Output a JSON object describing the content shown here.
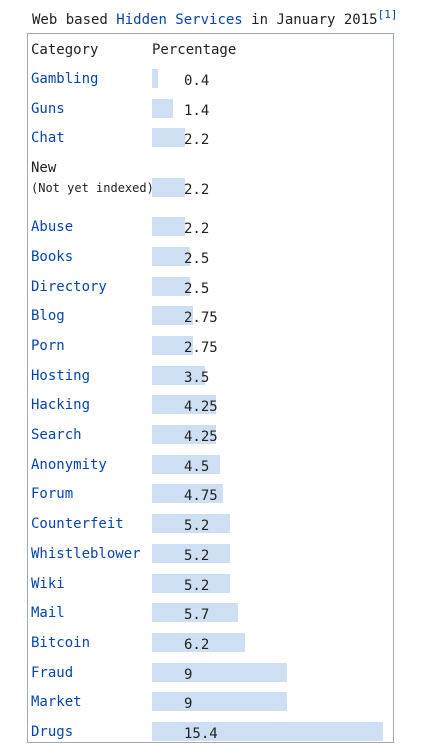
{
  "chart_data": {
    "type": "table",
    "caption": {
      "prefix": "Web based ",
      "link": "Hidden Services",
      "suffix": " in January 2015",
      "ref": "[1]"
    },
    "columns": [
      "Category",
      "Percentage"
    ],
    "rows": [
      {
        "category": "Gambling",
        "value": 0.4,
        "label": "0.4",
        "link": true
      },
      {
        "category": "Guns",
        "value": 1.4,
        "label": "1.4",
        "link": true
      },
      {
        "category": "Chat",
        "value": 2.2,
        "label": "2.2",
        "link": true
      },
      {
        "category": "New",
        "sub": "(Not yet indexed)",
        "value": 2.2,
        "label": "2.2",
        "link": false
      },
      {
        "category": "Abuse",
        "value": 2.2,
        "label": "2.2",
        "link": true
      },
      {
        "category": "Books",
        "value": 2.5,
        "label": "2.5",
        "link": true
      },
      {
        "category": "Directory",
        "value": 2.5,
        "label": "2.5",
        "link": true
      },
      {
        "category": "Blog",
        "value": 2.75,
        "label": "2.75",
        "link": true
      },
      {
        "category": "Porn",
        "value": 2.75,
        "label": "2.75",
        "link": true
      },
      {
        "category": "Hosting",
        "value": 3.5,
        "label": "3.5",
        "link": true
      },
      {
        "category": "Hacking",
        "value": 4.25,
        "label": "4.25",
        "link": true
      },
      {
        "category": "Search",
        "value": 4.25,
        "label": "4.25",
        "link": true
      },
      {
        "category": "Anonymity",
        "value": 4.5,
        "label": "4.5",
        "link": true
      },
      {
        "category": "Forum",
        "value": 4.75,
        "label": "4.75",
        "link": true
      },
      {
        "category": "Counterfeit",
        "value": 5.2,
        "label": "5.2",
        "link": true
      },
      {
        "category": "Whistleblower",
        "value": 5.2,
        "label": "5.2",
        "link": true
      },
      {
        "category": "Wiki",
        "value": 5.2,
        "label": "5.2",
        "link": true
      },
      {
        "category": "Mail",
        "value": 5.7,
        "label": "5.7",
        "link": true
      },
      {
        "category": "Bitcoin",
        "value": 6.2,
        "label": "6.2",
        "link": true
      },
      {
        "category": "Fraud",
        "value": 9,
        "label": "9",
        "link": true
      },
      {
        "category": "Market",
        "value": 9,
        "label": "9",
        "link": true
      },
      {
        "category": "Drugs",
        "value": 15.4,
        "label": "15.4",
        "link": true
      }
    ],
    "colors": {
      "bar": "#cfdff3",
      "link": "#0645ad",
      "text": "#202122",
      "border": "#a2a9b1"
    }
  }
}
